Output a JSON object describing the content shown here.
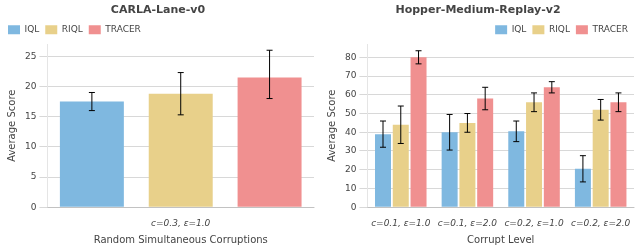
{
  "chart_data": [
    {
      "type": "bar",
      "title": "CARLA-Lane-v0",
      "x_label": "Random Simultaneous Corruptions",
      "y_label": "Average Score",
      "categories": [
        null,
        "c=0.3, ε=1.0",
        null
      ],
      "series": [
        {
          "name": "IQL",
          "color": "#7fb8e0",
          "values": [
            17.5,
            null,
            null
          ],
          "err_lo": [
            1.5,
            null,
            null
          ],
          "err_hi": [
            1.5,
            null,
            null
          ]
        },
        {
          "name": "RIQL",
          "color": "#e8d08a",
          "values": [
            null,
            18.8,
            null
          ],
          "err_lo": [
            null,
            3.5,
            null
          ],
          "err_hi": [
            null,
            3.5,
            null
          ]
        },
        {
          "name": "TRACER",
          "color": "#f09090",
          "values": [
            null,
            null,
            21.5
          ],
          "err_lo": [
            null,
            null,
            3.5
          ],
          "err_hi": [
            null,
            null,
            4.5
          ]
        }
      ],
      "ylim": [
        0,
        27
      ],
      "yticks": [
        0,
        5,
        10,
        15,
        20,
        25
      ],
      "grid": true,
      "legend": "upper left"
    },
    {
      "type": "bar",
      "title": "Hopper-Medium-Replay-v2",
      "x_label": "Corrupt Level",
      "y_label": "Average Score",
      "categories": [
        "c=0.1, ε=1.0",
        "c=0.1, ε=2.0",
        "c=0.2, ε=1.0",
        "c=0.2, ε=2.0"
      ],
      "series": [
        {
          "name": "IQL",
          "color": "#7fb8e0",
          "values": [
            39.0,
            40.0,
            40.5,
            20.5
          ],
          "errors": [
            7.0,
            9.5,
            5.5,
            7.0
          ]
        },
        {
          "name": "RIQL",
          "color": "#e8d08a",
          "values": [
            44.0,
            45.0,
            56.0,
            52.0
          ],
          "errors": [
            10.0,
            5.0,
            5.0,
            5.5
          ]
        },
        {
          "name": "TRACER",
          "color": "#f09090",
          "values": [
            80.0,
            58.0,
            64.0,
            56.0
          ],
          "errors": [
            3.5,
            6.0,
            3.0,
            5.0
          ]
        }
      ],
      "ylim": [
        0,
        87
      ],
      "yticks": [
        0,
        10,
        20,
        30,
        40,
        50,
        60,
        70,
        80
      ],
      "grid": true,
      "legend": "upper right"
    }
  ]
}
